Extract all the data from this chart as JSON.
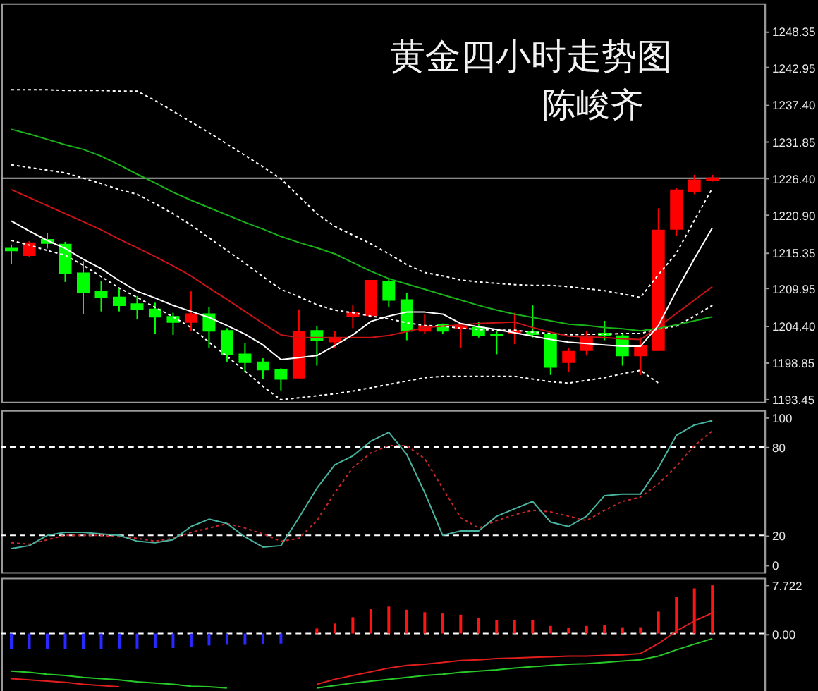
{
  "chart_data": [
    {
      "type": "candlestick",
      "title": "黄金四小时走势图",
      "subtitle": "陈峻齐",
      "tick_labels": "y",
      "categories": [
        null,
        null,
        null,
        null,
        null,
        null,
        null,
        null,
        null,
        null,
        null,
        null,
        null,
        null,
        null,
        null,
        null,
        null,
        null,
        null,
        null,
        null,
        null,
        null,
        null,
        null,
        null,
        null,
        null,
        null,
        null,
        null,
        null,
        null,
        null,
        null,
        null,
        null,
        null,
        null
      ],
      "ohlc": [
        [
          1215.9,
          1216.5,
          1213.6,
          1215.6
        ],
        [
          1214.9,
          1217.0,
          1214.6,
          1216.7
        ],
        [
          1217.2,
          1218.2,
          1215.9,
          1216.7
        ],
        [
          1216.5,
          1216.9,
          1210.9,
          1212.2
        ],
        [
          1212.2,
          1214.0,
          1206.1,
          1209.3
        ],
        [
          1209.5,
          1211.1,
          1206.5,
          1208.6
        ],
        [
          1208.6,
          1209.9,
          1206.5,
          1207.4
        ],
        [
          1207.6,
          1208.8,
          1205.3,
          1206.8
        ],
        [
          1206.8,
          1207.8,
          1203.2,
          1205.7
        ],
        [
          1205.7,
          1206.3,
          1203.0,
          1204.9
        ],
        [
          1204.9,
          1209.5,
          1203.6,
          1206.1
        ],
        [
          1206.1,
          1207.2,
          1201.1,
          1203.6
        ],
        [
          1203.6,
          1204.0,
          1199.0,
          1200.1
        ],
        [
          1200.1,
          1201.8,
          1197.4,
          1198.9
        ],
        [
          1198.9,
          1199.5,
          1196.4,
          1197.8
        ],
        [
          1197.8,
          1198.0,
          1194.7,
          1196.4
        ],
        [
          1196.6,
          1206.8,
          1196.6,
          1203.4
        ],
        [
          1203.6,
          1204.3,
          1198.4,
          1202.2
        ],
        [
          1202.0,
          1203.6,
          1201.1,
          1202.4
        ],
        [
          1205.8,
          1207.4,
          1204.0,
          1206.3
        ],
        [
          1205.9,
          1211.1,
          1205.6,
          1211.1
        ],
        [
          1210.9,
          1211.3,
          1207.2,
          1208.2
        ],
        [
          1208.2,
          1209.3,
          1202.2,
          1203.6
        ],
        [
          1203.6,
          1206.1,
          1203.2,
          1204.3
        ],
        [
          1204.5,
          1204.7,
          1203.2,
          1203.6
        ],
        [
          1204.0,
          1204.5,
          1201.1,
          1204.3
        ],
        [
          1204.1,
          1204.9,
          1202.6,
          1203.0
        ],
        [
          1203.0,
          1203.6,
          1200.1,
          1202.9
        ],
        [
          1203.3,
          1206.3,
          1201.6,
          1203.6
        ],
        [
          1203.4,
          1207.4,
          1202.6,
          1203.1
        ],
        [
          1203.0,
          1203.2,
          1197.0,
          1198.2
        ],
        [
          1198.9,
          1201.1,
          1197.4,
          1200.5
        ],
        [
          1200.7,
          1203.6,
          1199.9,
          1202.8
        ],
        [
          1203.2,
          1205.1,
          1202.2,
          1202.9
        ],
        [
          1202.8,
          1203.2,
          1198.4,
          1199.9
        ],
        [
          1199.9,
          1202.6,
          1197.0,
          1201.3
        ],
        [
          1200.7,
          1221.9,
          1200.7,
          1218.6
        ],
        [
          1218.8,
          1225.0,
          1217.8,
          1224.6
        ],
        [
          1224.4,
          1226.9,
          1224.0,
          1226.1
        ],
        [
          1226.1,
          1226.9,
          1225.9,
          1226.4
        ]
      ],
      "colors": [
        "#00ff00",
        "#ff0000",
        "#00ff00",
        "#00ff00",
        "#00ff00",
        "#00ff00",
        "#00ff00",
        "#00ff00",
        "#00ff00",
        "#00ff00",
        "#ff0000",
        "#00ff00",
        "#00ff00",
        "#00ff00",
        "#00ff00",
        "#00ff00",
        "#ff0000",
        "#00ff00",
        "#ff0000",
        "#ff0000",
        "#ff0000",
        "#00ff00",
        "#00ff00",
        "#ff0000",
        "#00ff00",
        "#ff0000",
        "#00ff00",
        "#00ff00",
        "#ff0000",
        "#00ff00",
        "#00ff00",
        "#ff0000",
        "#ff0000",
        "#00ff00",
        "#00ff00",
        "#ff0000",
        "#ff0000",
        "#ff0000",
        "#ff0000",
        "#ff0000"
      ],
      "series": [
        {
          "type": "line",
          "color": "#ffffff",
          "line_style": "dotted",
          "values": [
            1239.6,
            1239.6,
            1239.6,
            1239.5,
            1239.5,
            1239.5,
            1239.4,
            1239.4,
            1238.0,
            1236.4,
            1234.8,
            1233.2,
            1231.5,
            1229.8,
            1228.1,
            1226.3,
            1223.7,
            1221.1,
            1219.2,
            1217.9,
            1216.6,
            1215.1,
            1213.5,
            1212.3,
            1211.8,
            1211.2,
            1210.9,
            1210.7,
            1210.5,
            1210.4,
            1210.4,
            1210.2,
            1209.9,
            1209.6,
            1209.1,
            1208.6,
            1212.0,
            1215.2,
            1220.1,
            1224.9
          ]
        },
        {
          "type": "line",
          "color": "#ffffff",
          "line_style": "dotted",
          "values": [
            1228.4,
            1228.0,
            1227.6,
            1227.2,
            1226.4,
            1225.6,
            1224.7,
            1224.0,
            1222.6,
            1221.1,
            1219.4,
            1217.5,
            1215.6,
            1213.7,
            1211.7,
            1209.8,
            1208.7,
            1207.5,
            1206.7,
            1206.3,
            1205.8,
            1205.4,
            1204.8,
            1204.4,
            1204.3,
            1204.0,
            1203.8,
            1203.7,
            1203.7,
            1203.4,
            1203.2,
            1203.0,
            1203.1,
            1203.1,
            1203.2,
            1203.2,
            1203.9,
            1204.3,
            1205.8,
            1207.4
          ]
        },
        {
          "type": "line",
          "color": "#ffffff",
          "line_style": "dotted",
          "values": [
            1217.1,
            1216.4,
            1215.6,
            1214.9,
            1213.4,
            1211.7,
            1210.0,
            1208.6,
            1207.1,
            1205.7,
            1204.1,
            1201.9,
            1199.8,
            1197.6,
            1195.3,
            1193.3,
            1193.6,
            1193.9,
            1194.2,
            1194.6,
            1195.1,
            1195.6,
            1196.1,
            1196.6,
            1196.8,
            1196.8,
            1196.8,
            1196.8,
            1196.8,
            1196.4,
            1196.0,
            1195.8,
            1196.2,
            1196.6,
            1197.2,
            1197.7,
            1195.8,
            null,
            null,
            null
          ]
        },
        {
          "type": "line",
          "color": "#19b319",
          "values": [
            1233.7,
            1233.0,
            1232.2,
            1231.4,
            1230.7,
            1229.7,
            1228.4,
            1227.0,
            1225.7,
            1224.3,
            1223.1,
            1222.0,
            1220.9,
            1219.8,
            1218.8,
            1217.7,
            1216.8,
            1216.0,
            1215.1,
            1213.8,
            1212.5,
            1211.4,
            1210.6,
            1209.8,
            1209.0,
            1208.2,
            1207.4,
            1206.7,
            1206.1,
            1205.6,
            1205.1,
            1204.6,
            1204.4,
            1204.1,
            1203.9,
            1203.6,
            1204.0,
            1204.5,
            1205.1,
            1205.7
          ]
        },
        {
          "type": "line",
          "color": "#c81414",
          "values": [
            1224.7,
            1223.5,
            1222.3,
            1221.1,
            1219.9,
            1218.7,
            1217.3,
            1216.0,
            1214.7,
            1213.3,
            1211.8,
            1210.0,
            1208.3,
            1206.5,
            1204.7,
            1203.0,
            1202.6,
            1202.6,
            1202.6,
            1202.6,
            1202.6,
            1202.9,
            1203.5,
            1204.1,
            1204.3,
            1204.5,
            1204.7,
            1204.8,
            1204.9,
            1204.1,
            1203.4,
            1202.8,
            1202.7,
            1202.6,
            1202.4,
            1202.3,
            1204.2,
            1206.2,
            1208.2,
            1210.2
          ]
        },
        {
          "type": "line",
          "color": "#ffffff",
          "values": [
            1220.0,
            1218.5,
            1217.1,
            1215.9,
            1214.3,
            1212.9,
            1211.1,
            1209.5,
            1208.5,
            1207.4,
            1206.5,
            1205.6,
            1204.4,
            1203.1,
            1201.5,
            1199.3,
            1199.6,
            1199.9,
            1201.4,
            1203.0,
            1205.0,
            1205.8,
            1206.4,
            1206.4,
            1206.1,
            1204.7,
            1204.2,
            1203.8,
            1203.3,
            1202.8,
            1202.3,
            1201.9,
            1201.7,
            1201.5,
            1201.3,
            1201.3,
            1204.4,
            1209.6,
            1214.4,
            1219.0
          ]
        }
      ],
      "ylim": [
        1193.0,
        1252.5
      ],
      "yticks": [
        1193.45,
        1198.85,
        {
          "value": 1204.4,
          "label": "1204.40"
        },
        1209.95,
        1215.35,
        {
          "value": 1220.9,
          "label": "1220.90"
        },
        {
          "value": 1226.4,
          "label": "1226.40"
        },
        1231.85,
        {
          "value": 1237.4,
          "label": "1237.40"
        },
        1242.95,
        1248.35
      ],
      "ref_lines": [
        {
          "axis": "y",
          "value": 1226.4,
          "color": "#b4b4b4",
          "line_style": "solid"
        }
      ]
    },
    {
      "type": "line",
      "tick_labels": "y",
      "categories": [
        null,
        null,
        null,
        null,
        null,
        null,
        null,
        null,
        null,
        null,
        null,
        null,
        null,
        null,
        null,
        null,
        null,
        null,
        null,
        null,
        null,
        null,
        null,
        null,
        null,
        null,
        null,
        null,
        null,
        null,
        null,
        null,
        null,
        null,
        null,
        null,
        null,
        null,
        null,
        null
      ],
      "series": [
        {
          "color": "#c82828",
          "line_style": "dotted",
          "values": [
            15,
            14,
            17,
            20,
            20,
            20,
            19,
            18,
            16,
            18,
            22,
            25,
            28,
            25,
            21,
            16,
            18,
            30,
            49,
            66,
            76,
            81,
            81,
            72,
            52,
            32,
            25,
            30,
            34,
            37,
            36,
            33,
            30,
            37,
            43,
            46,
            55,
            67,
            81,
            91
          ]
        },
        {
          "color": "#48b4a0",
          "values": [
            11,
            13,
            20,
            22,
            22,
            21,
            20,
            16,
            15,
            17,
            26,
            31,
            28,
            19,
            12,
            13,
            32,
            52,
            68,
            74,
            84,
            90,
            75,
            49,
            20,
            23,
            23,
            33,
            38,
            43,
            29,
            26,
            33,
            47,
            48,
            48,
            66,
            88,
            95,
            98
          ]
        }
      ],
      "ylim": [
        -5,
        105
      ],
      "yticks": [
        0,
        20,
        80,
        100
      ],
      "ref_lines": [
        {
          "axis": "y",
          "value": 20,
          "color": "#ffffff",
          "line_style": "dashed"
        },
        {
          "axis": "y",
          "value": 80,
          "color": "#ffffff",
          "line_style": "dashed"
        }
      ]
    },
    {
      "type": "bar",
      "tick_labels": "y",
      "categories": [
        null,
        null,
        null,
        null,
        null,
        null,
        null,
        null,
        null,
        null,
        null,
        null,
        null,
        null,
        null,
        null,
        null,
        null,
        null,
        null,
        null,
        null,
        null,
        null,
        null,
        null,
        null,
        null,
        null,
        null,
        null,
        null,
        null,
        null,
        null,
        null,
        null,
        null,
        null,
        null
      ],
      "series": [
        {
          "type": "bar",
          "values": [
            -2.5,
            -2.5,
            -2.5,
            -2.5,
            -2.5,
            -2.5,
            -2.4,
            -2.4,
            -2.3,
            -2.3,
            -2.1,
            -1.9,
            -1.8,
            -1.8,
            -1.7,
            -1.6,
            null,
            0.8,
            1.6,
            2.6,
            3.9,
            4.3,
            3.8,
            3.4,
            3.2,
            3.0,
            2.5,
            2.2,
            2.2,
            2.1,
            1.2,
            0.9,
            1.2,
            1.4,
            1.0,
            1.0,
            3.5,
            5.9,
            7.2,
            7.7
          ],
          "colors": [
            "#2828ff",
            "#2828ff",
            "#2828ff",
            "#2828ff",
            "#2828ff",
            "#2828ff",
            "#2828ff",
            "#2828ff",
            "#2828ff",
            "#2828ff",
            "#2828ff",
            "#2828ff",
            "#2828ff",
            "#2828ff",
            "#2828ff",
            "#2828ff",
            null,
            "#ff1414",
            "#ff1414",
            "#ff1414",
            "#ff1414",
            "#ff1414",
            "#ff1414",
            "#ff1414",
            "#ff1414",
            "#ff1414",
            "#ff1414",
            "#ff1414",
            "#ff1414",
            "#ff1414",
            "#ff1414",
            "#ff1414",
            "#ff1414",
            "#ff1414",
            "#ff1414",
            "#ff1414",
            "#ff1414",
            "#ff1414",
            "#ff1414",
            "#ff1414"
          ]
        },
        {
          "type": "line",
          "color": "#e01e1e",
          "values": [
            -7.2,
            -7.4,
            -7.6,
            -7.8,
            -8.1,
            -8.3,
            -8.5,
            null,
            null,
            null,
            null,
            null,
            null,
            null,
            null,
            null,
            null,
            -8.1,
            -7.3,
            -6.7,
            -6.1,
            -5.5,
            -5.1,
            -4.9,
            -4.6,
            -4.3,
            -4.2,
            -4.0,
            -3.9,
            -3.8,
            -3.7,
            -3.6,
            -3.6,
            -3.5,
            -3.4,
            -3.2,
            -1.6,
            0.4,
            2.0,
            3.3
          ]
        },
        {
          "type": "line",
          "color": "#28c828",
          "values": [
            -6.0,
            -6.2,
            -6.5,
            -6.7,
            -7.0,
            -7.2,
            -7.4,
            -7.7,
            -7.9,
            -8.1,
            -8.4,
            -8.5,
            -8.7,
            null,
            null,
            null,
            null,
            -8.7,
            -8.3,
            -7.9,
            -7.6,
            -7.3,
            -7.0,
            -6.7,
            -6.5,
            -6.2,
            -6.0,
            -5.8,
            -5.5,
            -5.3,
            -5.1,
            -4.9,
            -4.8,
            -4.6,
            -4.4,
            -4.2,
            -3.6,
            -2.6,
            -1.7,
            -0.8
          ]
        }
      ],
      "ylim": [
        -9.3,
        8.9
      ],
      "yticks": [
        {
          "value": 0,
          "label": "0.00"
        },
        7.722
      ],
      "ref_lines": [
        {
          "axis": "y",
          "value": 0,
          "color": "#ffffff",
          "line_style": "dashed"
        }
      ]
    }
  ]
}
